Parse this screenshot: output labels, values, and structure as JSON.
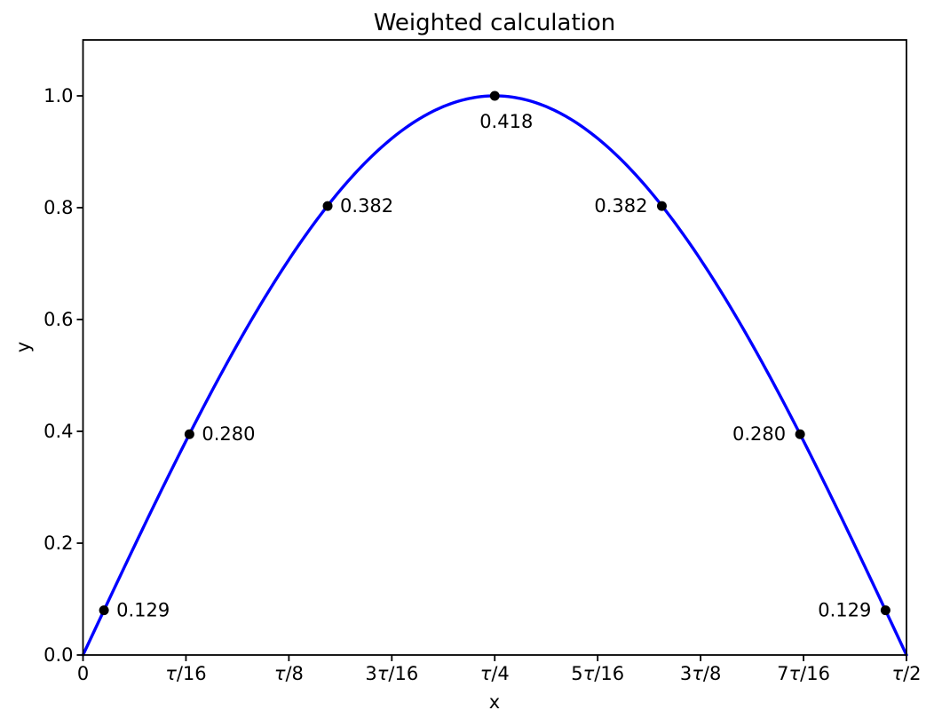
{
  "figure": {
    "title": "Weighted calculation",
    "xlabel": "x",
    "ylabel": "y"
  },
  "chart_data": {
    "type": "line",
    "title": "Weighted calculation",
    "xlabel": "x",
    "ylabel": "y",
    "background": "#ffffff",
    "text_color": "#000000",
    "frame_color": "#000000",
    "grid": false,
    "legend": false,
    "x_axis": {
      "unit": "fractions of τ (tau)",
      "min_over_tau": 0,
      "max_over_tau": 0.5,
      "ticks": [
        {
          "pos_over_tau": 0,
          "label": "0"
        },
        {
          "pos_over_tau": 0.0625,
          "label": "τ/16"
        },
        {
          "pos_over_tau": 0.125,
          "label": "τ/8"
        },
        {
          "pos_over_tau": 0.1875,
          "label": "3τ/16"
        },
        {
          "pos_over_tau": 0.25,
          "label": "τ/4"
        },
        {
          "pos_over_tau": 0.3125,
          "label": "5τ/16"
        },
        {
          "pos_over_tau": 0.375,
          "label": "3τ/8"
        },
        {
          "pos_over_tau": 0.4375,
          "label": "7τ/16"
        },
        {
          "pos_over_tau": 0.5,
          "label": "τ/2"
        }
      ]
    },
    "y_axis": {
      "min": 0,
      "max": 1.1,
      "ticks": [
        {
          "pos": 0.0,
          "label": "0.0"
        },
        {
          "pos": 0.2,
          "label": "0.2"
        },
        {
          "pos": 0.4,
          "label": "0.4"
        },
        {
          "pos": 0.6,
          "label": "0.6"
        },
        {
          "pos": 0.8,
          "label": "0.8"
        },
        {
          "pos": 1.0,
          "label": "1.0"
        }
      ]
    },
    "curve": {
      "name": "sine-curve",
      "fn": "sin",
      "x_range_over_tau": [
        0,
        0.5
      ],
      "color": "#0000ff",
      "line_width": 3.4
    },
    "scatter": {
      "name": "annotated-points",
      "color": "#000000",
      "marker_radius": 5.5,
      "points": [
        {
          "x_over_tau": 0.012723,
          "y": 0.0799,
          "label": "0.129",
          "label_side": "right"
        },
        {
          "x_over_tau": 0.064617,
          "y": 0.3949,
          "label": "0.280",
          "label_side": "right"
        },
        {
          "x_over_tau": 0.148539,
          "y": 0.8029,
          "label": "0.382",
          "label_side": "right"
        },
        {
          "x_over_tau": 0.25,
          "y": 1.0,
          "label": "0.418",
          "label_side": "below"
        },
        {
          "x_over_tau": 0.351461,
          "y": 0.8029,
          "label": "0.382",
          "label_side": "left"
        },
        {
          "x_over_tau": 0.435383,
          "y": 0.3949,
          "label": "0.280",
          "label_side": "left"
        },
        {
          "x_over_tau": 0.487277,
          "y": 0.0799,
          "label": "0.129",
          "label_side": "left"
        }
      ]
    }
  }
}
